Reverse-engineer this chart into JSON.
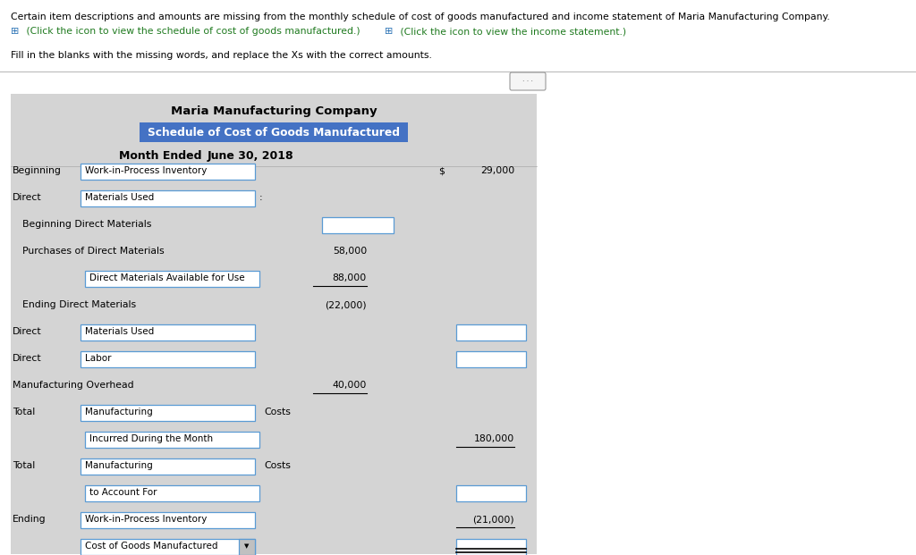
{
  "title_line1": "Maria Manufacturing Company",
  "title_line2": "Schedule of Cost of Goods Manufactured",
  "title_line3_bold": "Month Ended ",
  "title_line3_normal": "June 30, 2018",
  "header_text": "Certain item descriptions and amounts are missing from the monthly schedule of cost of goods manufactured and income statement of Maria Manufacturing Company.",
  "link1_icon": "⊞",
  "link1_text": " (Click the icon to view the schedule of cost of goods manufactured.)",
  "link2_icon": "⊞",
  "link2_text": " (Click the icon to view the income statement.)",
  "instruction": "Fill in the blanks with the missing words, and replace the Xs with the correct amounts.",
  "bg_gray": "#d4d4d4",
  "blue_hdr": "#4472c4",
  "white": "#ffffff",
  "link_color": "#1f7a1f",
  "icon_color": "#2e75b6",
  "rows": [
    {
      "label1": "Beginning",
      "box1": "Work-in-Process Inventory",
      "colon": false,
      "indent": false,
      "plain1": null,
      "col2_val": null,
      "col2_box": false,
      "col2_ul": false,
      "dollar": true,
      "col3_val": "29,000",
      "col3_box": false,
      "col3_ul": false,
      "col3_dul": false,
      "dropdown": false
    },
    {
      "label1": "Direct",
      "box1": "Materials Used",
      "colon": true,
      "indent": false,
      "plain1": null,
      "col2_val": null,
      "col2_box": false,
      "col2_ul": false,
      "dollar": false,
      "col3_val": null,
      "col3_box": false,
      "col3_ul": false,
      "col3_dul": false,
      "dropdown": false
    },
    {
      "label1": null,
      "box1": null,
      "colon": false,
      "indent": true,
      "plain1": "Beginning Direct Materials",
      "col2_val": null,
      "col2_box": true,
      "col2_ul": false,
      "dollar": false,
      "col3_val": null,
      "col3_box": false,
      "col3_ul": false,
      "col3_dul": false,
      "dropdown": false
    },
    {
      "label1": null,
      "box1": null,
      "colon": false,
      "indent": true,
      "plain1": "Purchases of Direct Materials",
      "col2_val": "58,000",
      "col2_box": false,
      "col2_ul": false,
      "dollar": false,
      "col3_val": null,
      "col3_box": false,
      "col3_ul": false,
      "col3_dul": false,
      "dropdown": false
    },
    {
      "label1": null,
      "box1": "Direct Materials Available for Use",
      "colon": false,
      "indent": true,
      "plain1": null,
      "col2_val": "88,000",
      "col2_box": false,
      "col2_ul": true,
      "dollar": false,
      "col3_val": null,
      "col3_box": false,
      "col3_ul": false,
      "col3_dul": false,
      "dropdown": false
    },
    {
      "label1": null,
      "box1": null,
      "colon": false,
      "indent": true,
      "plain1": "Ending Direct Materials",
      "col2_val": "(22,000)",
      "col2_box": false,
      "col2_ul": false,
      "dollar": false,
      "col3_val": null,
      "col3_box": false,
      "col3_ul": false,
      "col3_dul": false,
      "dropdown": false
    },
    {
      "label1": "Direct",
      "box1": "Materials Used",
      "colon": false,
      "indent": false,
      "plain1": null,
      "col2_val": null,
      "col2_box": false,
      "col2_ul": false,
      "dollar": false,
      "col3_val": null,
      "col3_box": true,
      "col3_ul": false,
      "col3_dul": false,
      "dropdown": false
    },
    {
      "label1": "Direct",
      "box1": "Labor",
      "colon": false,
      "indent": false,
      "plain1": null,
      "col2_val": null,
      "col2_box": false,
      "col2_ul": false,
      "dollar": false,
      "col3_val": null,
      "col3_box": true,
      "col3_ul": false,
      "col3_dul": false,
      "dropdown": false
    },
    {
      "label1": null,
      "box1": null,
      "colon": false,
      "indent": false,
      "plain1": "Manufacturing Overhead",
      "col2_val": "40,000",
      "col2_box": false,
      "col2_ul": true,
      "dollar": false,
      "col3_val": null,
      "col3_box": false,
      "col3_ul": false,
      "col3_dul": false,
      "dropdown": false
    },
    {
      "label1": "Total",
      "box1": "Manufacturing",
      "colon": false,
      "indent": false,
      "plain1": null,
      "col2_suffix": "Costs",
      "col2_val": null,
      "col2_box": false,
      "col2_ul": false,
      "dollar": false,
      "col3_val": null,
      "col3_box": false,
      "col3_ul": false,
      "col3_dul": false,
      "dropdown": false
    },
    {
      "label1": null,
      "box1": "Incurred During the Month",
      "colon": false,
      "indent": true,
      "plain1": null,
      "col2_val": null,
      "col2_box": false,
      "col2_ul": false,
      "dollar": false,
      "col3_val": "180,000",
      "col3_box": false,
      "col3_ul": true,
      "col3_dul": false,
      "dropdown": false
    },
    {
      "label1": "Total",
      "box1": "Manufacturing",
      "colon": false,
      "indent": false,
      "plain1": null,
      "col2_suffix": "Costs",
      "col2_val": null,
      "col2_box": false,
      "col2_ul": false,
      "dollar": false,
      "col3_val": null,
      "col3_box": false,
      "col3_ul": false,
      "col3_dul": false,
      "dropdown": false
    },
    {
      "label1": null,
      "box1": "to Account For",
      "colon": false,
      "indent": true,
      "plain1": null,
      "col2_val": null,
      "col2_box": false,
      "col2_ul": false,
      "dollar": false,
      "col3_val": null,
      "col3_box": true,
      "col3_ul": false,
      "col3_dul": false,
      "dropdown": false
    },
    {
      "label1": "Ending",
      "box1": "Work-in-Process Inventory",
      "colon": false,
      "indent": false,
      "plain1": null,
      "col2_val": null,
      "col2_box": false,
      "col2_ul": false,
      "dollar": false,
      "col3_val": "(21,000)",
      "col3_box": false,
      "col3_ul": true,
      "col3_dul": false,
      "dropdown": false
    },
    {
      "label1": null,
      "box1": "Cost of Goods Manufactured",
      "colon": false,
      "indent": false,
      "plain1": null,
      "col2_val": null,
      "col2_box": false,
      "col2_ul": false,
      "dollar": false,
      "col3_val": null,
      "col3_box": true,
      "col3_ul": false,
      "col3_dul": true,
      "dropdown": true
    }
  ]
}
